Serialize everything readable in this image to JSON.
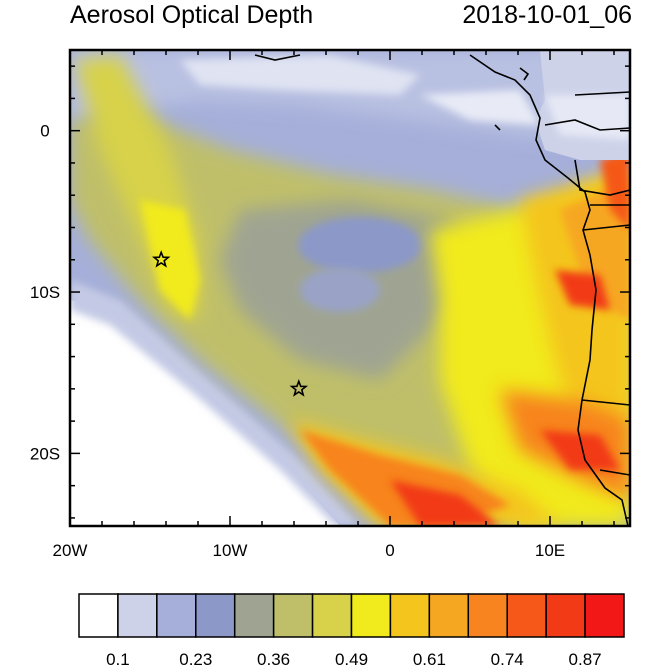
{
  "header": {
    "title": "Aerosol Optical Depth",
    "timestamp": "2018-10-01_06"
  },
  "map": {
    "projection": "lat-lon",
    "lon_range": [
      -20,
      15
    ],
    "lat_range": [
      -24.5,
      5
    ],
    "x_ticks": [
      {
        "lon": -20,
        "label": "20W"
      },
      {
        "lon": -10,
        "label": "10W"
      },
      {
        "lon": 0,
        "label": "0"
      },
      {
        "lon": 10,
        "label": "10E"
      }
    ],
    "y_ticks": [
      {
        "lat": 0,
        "label": "0"
      },
      {
        "lat": -10,
        "label": "10S"
      },
      {
        "lat": -20,
        "label": "20S"
      }
    ],
    "markers": [
      {
        "name": "star-marker-north",
        "lon": -14.3,
        "lat": -8.0
      },
      {
        "name": "star-marker-south",
        "lon": -5.7,
        "lat": -16.0
      }
    ]
  },
  "colorbar": {
    "colors": [
      "#ffffff",
      "#cdd2e9",
      "#a5afd9",
      "#8c98c8",
      "#9fa492",
      "#bfbf6a",
      "#d7d24a",
      "#f1ea1c",
      "#f4c51c",
      "#f6a722",
      "#f7841e",
      "#f55818",
      "#f23a17",
      "#f21818"
    ],
    "labels": [
      "0.1",
      "0.23",
      "0.36",
      "0.49",
      "0.61",
      "0.74",
      "0.87"
    ]
  },
  "icons": {
    "marker": "star-icon"
  }
}
